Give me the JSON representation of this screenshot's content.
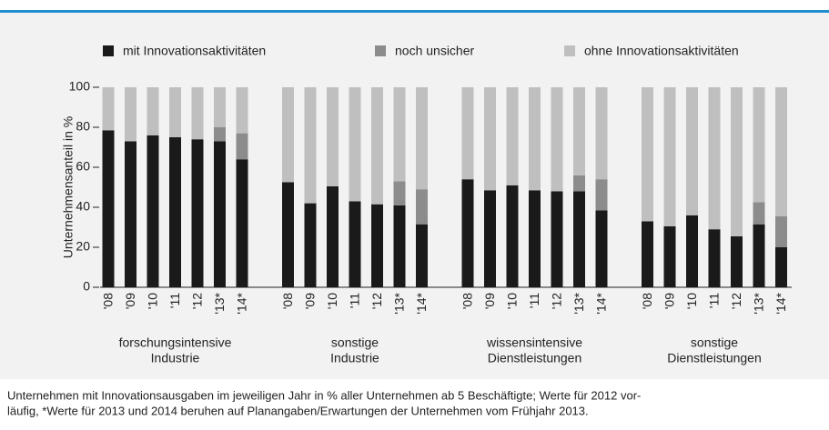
{
  "chart_data": {
    "type": "stacked_bar",
    "ylabel": "Unternehmensanteil in %",
    "categories": [
      "'08",
      "'09",
      "'10",
      "'11",
      "'12",
      "'13*",
      "'14*",
      "'08",
      "'09",
      "'10",
      "'11",
      "'12",
      "'13*",
      "'14*",
      "'08",
      "'09",
      "'10",
      "'11",
      "'12",
      "'13*",
      "'14*",
      "'08",
      "'09",
      "'10",
      "'11",
      "'12",
      "'13*",
      "'14*"
    ],
    "groups": [
      {
        "label": [
          "forschungsintensive",
          "Industrie"
        ]
      },
      {
        "label": [
          "sonstige",
          "Industrie"
        ]
      },
      {
        "label": [
          "wissensintensive",
          "Dienstleistungen"
        ]
      },
      {
        "label": [
          "sonstige",
          "Dienstleistungen"
        ]
      }
    ],
    "series": [
      {
        "name": "mit Innovationsaktivitäten",
        "color": "#1a1a1a",
        "values": [
          78.5,
          73,
          76,
          75,
          74,
          73,
          64,
          52.5,
          42,
          50.5,
          43,
          41.5,
          41,
          31.5,
          54,
          48.5,
          51,
          48.5,
          48,
          48,
          38.5,
          33,
          30.5,
          36,
          29,
          25.5,
          31.5,
          20
        ]
      },
      {
        "name": "noch unsicher",
        "color": "#8c8c8c",
        "values": [
          0,
          0,
          0,
          0,
          0,
          7,
          13,
          0,
          0,
          0,
          0,
          0,
          12,
          17.5,
          0,
          0,
          0,
          0,
          0,
          8,
          15.5,
          0,
          0,
          0,
          0,
          0,
          11,
          15.5
        ]
      },
      {
        "name": "ohne Innovationsaktivitäten",
        "color": "#bfbfbf",
        "values": [
          21.5,
          27,
          24,
          25,
          26,
          20,
          23,
          47.5,
          58,
          49.5,
          57,
          58.5,
          47,
          51,
          46,
          51.5,
          49,
          51.5,
          52,
          44,
          46,
          67,
          69.5,
          64,
          71,
          74.5,
          57.5,
          64.5
        ]
      }
    ],
    "ylim": [
      0,
      100
    ],
    "yticks": [
      0,
      20,
      40,
      60,
      80,
      100
    ],
    "note": [
      "Unternehmen mit Innovationsausgaben im jeweiligen Jahr in % aller Unternehmen ab 5 Beschäftigte; Werte für 2012 vor-",
      "läufig, *Werte für 2013 und 2014 beruhen auf Planangaben/Erwartungen der Unternehmen vom Frühjahr 2013."
    ]
  }
}
